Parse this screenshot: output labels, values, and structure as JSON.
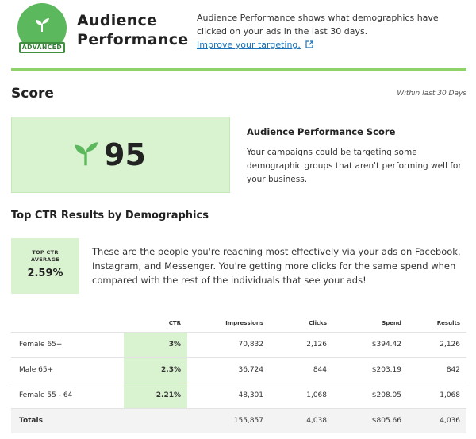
{
  "header": {
    "badge_label": "ADVANCED",
    "badge_icon": "sprout-icon",
    "title_line1": "Audience",
    "title_line2": "Performance",
    "description": "Audience Performance shows what demographics have clicked on your ads in the last 30 days.",
    "link_text": "Improve your targeting.",
    "accent_color": "#8fd26a",
    "badge_color": "#5cb85c",
    "link_color": "#1a73b8"
  },
  "score": {
    "title": "Score",
    "within": "Within last 30 Days",
    "value": "95",
    "icon": "sprout-icon",
    "panel_title": "Audience Performance Score",
    "panel_desc": "Your campaigns could be targeting some demographic groups that aren't performing well for your business.",
    "box_color": "#d9f2cf"
  },
  "ctr": {
    "title": "Top CTR Results by Demographics",
    "box_label_line1": "TOP CTR",
    "box_label_line2": "AVERAGE",
    "box_value": "2.59%",
    "description": "These are the people you're reaching most effectively via your ads on Facebook, Instagram, and Messenger. You're getting more clicks for the same spend when compared with the rest of the individuals that see your ads!"
  },
  "table": {
    "headers": [
      "",
      "CTR",
      "Impressions",
      "Clicks",
      "Spend",
      "Results"
    ],
    "rows": [
      [
        "Female 65+",
        "3%",
        "70,832",
        "2,126",
        "$394.42",
        "2,126"
      ],
      [
        "Male 65+",
        "2.3%",
        "36,724",
        "844",
        "$203.19",
        "842"
      ],
      [
        "Female 55 - 64",
        "2.21%",
        "48,301",
        "1,068",
        "$208.05",
        "1,068"
      ]
    ],
    "totals": [
      "Totals",
      "",
      "155,857",
      "4,038",
      "$805.66",
      "4,036"
    ]
  }
}
